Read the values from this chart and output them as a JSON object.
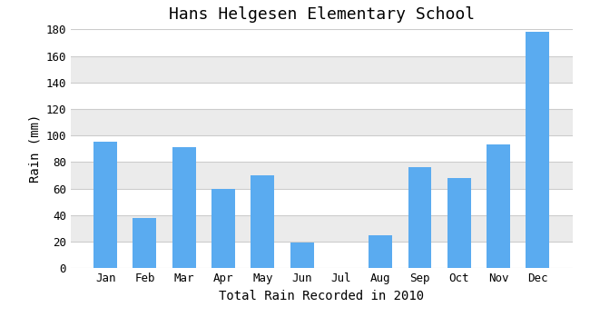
{
  "title": "Hans Helgesen Elementary School",
  "xlabel": "Total Rain Recorded in 2010",
  "ylabel": "Rain (mm)",
  "categories": [
    "Jan",
    "Feb",
    "Mar",
    "Apr",
    "May",
    "Jun",
    "Jul",
    "Aug",
    "Sep",
    "Oct",
    "Nov",
    "Dec"
  ],
  "values": [
    95,
    38,
    91,
    60,
    70,
    19,
    0,
    25,
    76,
    68,
    93,
    178
  ],
  "bar_color": "#5aabf0",
  "ylim": [
    0,
    180
  ],
  "yticks": [
    0,
    20,
    40,
    60,
    80,
    100,
    120,
    140,
    160,
    180
  ],
  "background_color": "#ffffff",
  "plot_bg_color": "#ffffff",
  "title_fontsize": 13,
  "xlabel_fontsize": 10,
  "ylabel_fontsize": 10,
  "tick_fontsize": 9,
  "bar_width": 0.6,
  "band_colors": [
    "#ffffff",
    "#ebebeb"
  ],
  "font_family": "monospace"
}
